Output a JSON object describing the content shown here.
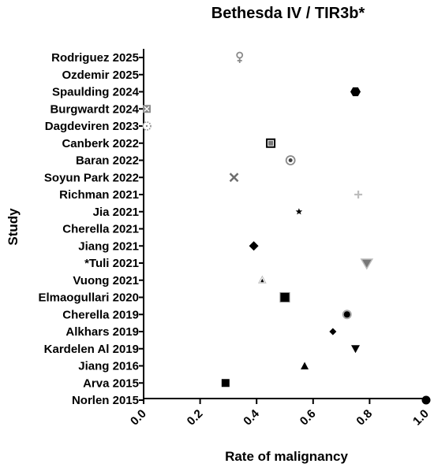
{
  "chart_data": {
    "type": "scatter",
    "title": "Bethesda IV / TIR3b*",
    "xlabel": "Rate of malignancy",
    "ylabel": "Study",
    "xlim": [
      0.0,
      1.0
    ],
    "xticks": [
      "0.0",
      "0.2",
      "0.4",
      "0.6",
      "0.8",
      "1.0"
    ],
    "grid": false,
    "legend": "none",
    "categories": [
      "Rodriguez 2025",
      "Ozdemir 2025",
      "Spaulding 2024",
      "Burgwardt 2024",
      "Dagdeviren 2023",
      "Canberk 2022",
      "Baran 2022",
      "Soyun Park 2022",
      "Richman 2021",
      "Jia 2021",
      "Cherella 2021",
      "Jiang 2021",
      "*Tuli 2021",
      "Vuong 2021",
      "Elmaogullari 2020",
      "Cherella 2019",
      "Alkhars 2019",
      "Kardelen Al 2019",
      "Jiang 2016",
      "Arva 2015",
      "Norlen 2015"
    ],
    "points": [
      {
        "study": "Rodriguez 2025",
        "x": 0.34,
        "marker": "female-symbol-icon",
        "color": "#8a8a8a"
      },
      {
        "study": "Ozdemir 2025",
        "x": null,
        "marker": "none",
        "color": "#000000"
      },
      {
        "study": "Spaulding 2024",
        "x": 0.75,
        "marker": "hexagon-icon",
        "color": "#000000"
      },
      {
        "study": "Burgwardt 2024",
        "x": 0.0,
        "marker": "square-x-icon",
        "color": "#8a8a8a"
      },
      {
        "study": "Dagdeviren 2023",
        "x": 0.0,
        "marker": "dotted-circle-icon",
        "color": "#8a8a8a"
      },
      {
        "study": "Canberk 2022",
        "x": 0.45,
        "marker": "square-in-square-icon",
        "color": "#000000"
      },
      {
        "study": "Baran 2022",
        "x": 0.52,
        "marker": "double-circle-icon",
        "color": "#8a8a8a"
      },
      {
        "study": "Soyun Park 2022",
        "x": 0.32,
        "marker": "x-cross-icon",
        "color": "#6e6e6e"
      },
      {
        "study": "Richman 2021",
        "x": 0.76,
        "marker": "plus-icon",
        "color": "#bdbdbd"
      },
      {
        "study": "Jia 2021",
        "x": 0.55,
        "marker": "star-icon",
        "color": "#000000"
      },
      {
        "study": "Cherella 2021",
        "x": null,
        "marker": "none",
        "color": "#000000"
      },
      {
        "study": "Jiang 2021",
        "x": 0.39,
        "marker": "diamond-icon",
        "color": "#000000"
      },
      {
        "study": "*Tuli 2021",
        "x": 0.79,
        "marker": "triangle-down-outlined-icon",
        "color": "#8a8a8a"
      },
      {
        "study": "Vuong 2021",
        "x": 0.42,
        "marker": "small-triangle-icon",
        "color": "#000000"
      },
      {
        "study": "Elmaogullari 2020",
        "x": 0.5,
        "marker": "square-bordered-icon",
        "color": "#000000"
      },
      {
        "study": "Cherella 2019",
        "x": 0.72,
        "marker": "circle-bordered-icon",
        "color": "#000000"
      },
      {
        "study": "Alkhars 2019",
        "x": 0.67,
        "marker": "small-diamond-icon",
        "color": "#000000"
      },
      {
        "study": "Kardelen Al 2019",
        "x": 0.75,
        "marker": "triangle-down-icon",
        "color": "#000000"
      },
      {
        "study": "Jiang 2016",
        "x": 0.57,
        "marker": "triangle-up-icon",
        "color": "#000000"
      },
      {
        "study": "Arva 2015",
        "x": 0.29,
        "marker": "square-icon",
        "color": "#000000"
      },
      {
        "study": "Norlen 2015",
        "x": 1.0,
        "marker": "circle-icon",
        "color": "#000000"
      }
    ]
  }
}
